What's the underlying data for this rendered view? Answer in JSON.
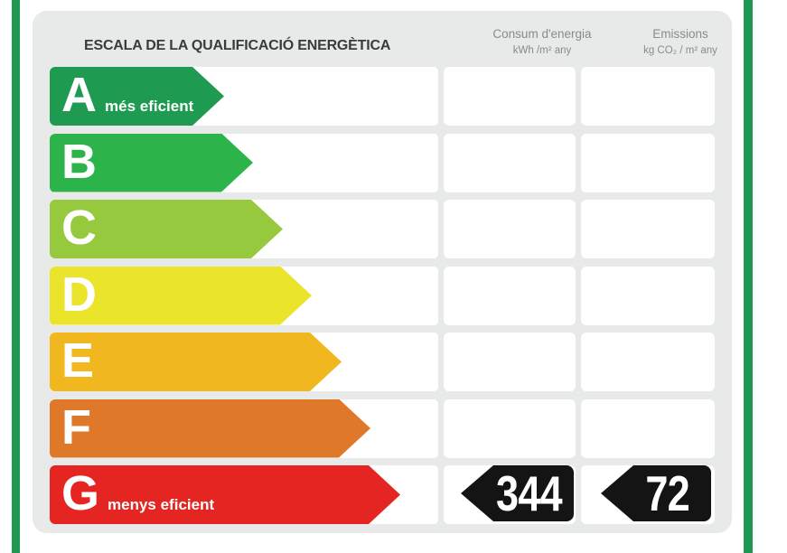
{
  "frame": {
    "accent_color": "#1F9852"
  },
  "panel": {
    "title": "ESCALA DE LA QUALIFICACIÓ ENERGÈTICA",
    "background": "#E8E9E9"
  },
  "columns": [
    {
      "id": "consum",
      "label": "Consum d'energia",
      "unit": "kWh /m²  any"
    },
    {
      "id": "emissions",
      "label": "Emissions",
      "unit": "kg CO₂ / m²  any"
    }
  ],
  "scale": {
    "rows": [
      {
        "grade": "A",
        "note": "més eficient",
        "color": "#1E9B51",
        "arrow_width": 193
      },
      {
        "grade": "B",
        "note": "",
        "color": "#2CB34A",
        "arrow_width": 225
      },
      {
        "grade": "C",
        "note": "",
        "color": "#96C93E",
        "arrow_width": 258
      },
      {
        "grade": "D",
        "note": "",
        "color": "#EAE42A",
        "arrow_width": 290
      },
      {
        "grade": "E",
        "note": "",
        "color": "#F0B71F",
        "arrow_width": 323
      },
      {
        "grade": "F",
        "note": "",
        "color": "#E0782A",
        "arrow_width": 355
      },
      {
        "grade": "G",
        "note": "menys eficient",
        "color": "#E52521",
        "arrow_width": 388
      }
    ]
  },
  "result": {
    "grade": "G",
    "consum_value": "344",
    "emissions_value": "72",
    "badge_color": "#141414"
  },
  "chart_data": {
    "type": "bar",
    "title": "ESCALA DE LA QUALIFICACIÓ ENERGÈTICA",
    "categories": [
      "A",
      "B",
      "C",
      "D",
      "E",
      "F",
      "G"
    ],
    "bar_colors": [
      "#1E9B51",
      "#2CB34A",
      "#96C93E",
      "#EAE42A",
      "#F0B71F",
      "#E0782A",
      "#E52521"
    ],
    "rating": "G",
    "series": [
      {
        "name": "Consum d'energia (kWh/m² any)",
        "values": [
          null,
          null,
          null,
          null,
          null,
          null,
          344
        ]
      },
      {
        "name": "Emissions (kg CO₂/m² any)",
        "values": [
          null,
          null,
          null,
          null,
          null,
          null,
          72
        ]
      }
    ],
    "annotations": [
      "A: més eficient",
      "G: menys eficient"
    ],
    "legend_position": "top",
    "grid": false
  }
}
